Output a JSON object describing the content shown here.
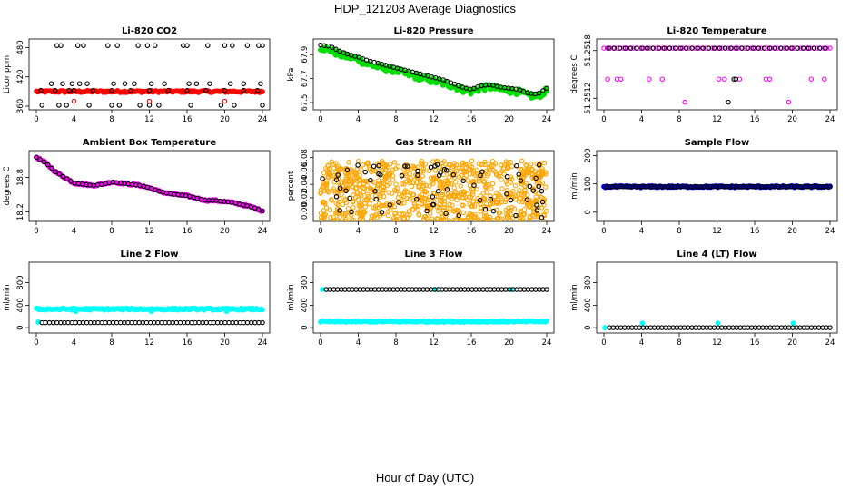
{
  "figure": {
    "title": "HDP_121208  Average Diagnostics",
    "xlabel": "Hour of Day (UTC)"
  },
  "chart_data": [
    {
      "id": "co2",
      "type": "scatter",
      "title": "Li-820 CO2",
      "ylabel": "Licor ppm",
      "xlim": [
        0,
        24
      ],
      "ylim": [
        360,
        490
      ],
      "xticks": [
        0,
        4,
        8,
        12,
        16,
        20,
        24
      ],
      "yticks": [
        360,
        420,
        480
      ],
      "series": [
        {
          "color": "#ff0000",
          "marker": "filled",
          "style": "band",
          "x_range": [
            0,
            24
          ],
          "y_center": 390,
          "y_spread": 2,
          "density": 160
        },
        {
          "color": "#000000",
          "marker": "open-circle",
          "x": [
            0.5,
            2,
            3.5,
            4,
            6,
            8,
            10,
            12,
            14,
            16,
            18,
            20,
            22,
            23.5
          ],
          "y": [
            392,
            392,
            392,
            392,
            392,
            392,
            392,
            392,
            392,
            392,
            392,
            392,
            392,
            392
          ]
        },
        {
          "color": "#000000",
          "marker": "open-circle",
          "x": [
            2.2,
            2.6,
            4.4,
            5.0,
            7.6,
            8.6,
            10.8,
            11.8,
            12.6,
            15.6,
            16.0,
            18.2,
            20.0,
            20.8,
            22.4,
            23.6,
            24.0
          ],
          "y": [
            484,
            484,
            484,
            484,
            484,
            484,
            484,
            484,
            484,
            484,
            484,
            484,
            484,
            484,
            484,
            484,
            484
          ]
        },
        {
          "color": "#000000",
          "marker": "open-circle",
          "x": [
            1.6,
            2.8,
            3.8,
            4.6,
            5.4,
            8.2,
            9.4,
            10.4,
            12.2,
            13.6,
            16.2,
            17.0,
            18.4,
            20.6,
            22.0,
            23.8
          ],
          "y": [
            406,
            406,
            406,
            406,
            406,
            406,
            406,
            406,
            406,
            406,
            406,
            406,
            406,
            406,
            406,
            406
          ]
        },
        {
          "color": "#000000",
          "marker": "open-circle",
          "x": [
            0.6,
            2.4,
            3.2,
            5.6,
            8.0,
            8.8,
            11.0,
            12.0,
            13.0,
            16.4,
            19.6,
            21.0,
            24.0
          ],
          "y": [
            362,
            362,
            362,
            362,
            362,
            362,
            362,
            362,
            362,
            362,
            362,
            362,
            362
          ]
        },
        {
          "color": "#ff0000",
          "marker": "open-circle",
          "x": [
            4.0,
            12.0,
            20.0
          ],
          "y": [
            370,
            370,
            370
          ]
        }
      ]
    },
    {
      "id": "pressure",
      "type": "scatter",
      "title": "Li-820 Pressure",
      "ylabel": "kPa",
      "xlim": [
        0,
        24
      ],
      "ylim": [
        67.47,
        68.0
      ],
      "xticks": [
        0,
        4,
        8,
        12,
        16,
        20,
        24
      ],
      "yticks": [
        67.5,
        67.7,
        67.9
      ],
      "series": [
        {
          "color": "#00dd00",
          "marker": "filled",
          "style": "band",
          "curve_x": [
            0,
            1,
            2,
            3,
            4,
            5,
            6,
            7,
            8,
            9,
            10,
            11,
            12,
            13,
            14,
            15,
            16,
            17,
            18,
            19,
            20,
            21,
            22,
            23,
            24
          ],
          "curve_y": [
            67.96,
            67.94,
            67.9,
            67.88,
            67.86,
            67.82,
            67.8,
            67.78,
            67.77,
            67.74,
            67.72,
            67.7,
            67.68,
            67.66,
            67.64,
            67.61,
            67.59,
            67.62,
            67.63,
            67.61,
            67.6,
            67.59,
            67.56,
            67.55,
            67.6
          ],
          "y_spread": 0.025,
          "density": 180
        },
        {
          "color": "#000000",
          "marker": "open-circle",
          "style": "line-samples",
          "curve_x": [
            0,
            1,
            2,
            3,
            4,
            5,
            6,
            7,
            8,
            9,
            10,
            11,
            12,
            13,
            14,
            15,
            16,
            17,
            18,
            19,
            20,
            21,
            22,
            23,
            24
          ],
          "curve_y": [
            67.98,
            67.97,
            67.93,
            67.9,
            67.88,
            67.85,
            67.83,
            67.81,
            67.79,
            67.77,
            67.75,
            67.73,
            67.71,
            67.69,
            67.66,
            67.63,
            67.61,
            67.64,
            67.65,
            67.63,
            67.62,
            67.61,
            67.58,
            67.57,
            67.62
          ],
          "count": 60
        }
      ]
    },
    {
      "id": "temp",
      "type": "scatter",
      "title": "Li-820 Temperature",
      "ylabel": "degrees C",
      "xlim": [
        0,
        24
      ],
      "ylim": [
        51.2511,
        51.2519
      ],
      "xticks": [
        0,
        4,
        8,
        12,
        16,
        20,
        24
      ],
      "yticks": [
        51.2512,
        51.2518
      ],
      "ytick_labels": [
        "51.2512",
        "51.2518"
      ],
      "series": [
        {
          "color": "#ff00ff",
          "marker": "open-circle",
          "style": "row",
          "x_range": [
            0,
            24
          ],
          "y": 51.25183,
          "count": 70
        },
        {
          "color": "#000000",
          "marker": "open-circle",
          "style": "row",
          "x_range": [
            0.5,
            23.5
          ],
          "y": 51.25183,
          "count": 40
        },
        {
          "color": "#ff00ff",
          "marker": "open-circle",
          "x": [
            0.4,
            1.4,
            1.8,
            4.8,
            6.2,
            12.2,
            12.8,
            14.4,
            17.2,
            17.6,
            22.0,
            23.4
          ],
          "y": [
            51.25144,
            51.25144,
            51.25144,
            51.25144,
            51.25144,
            51.25144,
            51.25144,
            51.25144,
            51.25144,
            51.25144,
            51.25144,
            51.25144
          ]
        },
        {
          "color": "#000000",
          "marker": "open-circle",
          "x": [
            13.8,
            14.0
          ],
          "y": [
            51.25144,
            51.25144
          ]
        },
        {
          "color": "#ff00ff",
          "marker": "open-circle",
          "x": [
            8.6,
            19.6
          ],
          "y": [
            51.25115,
            51.25115
          ]
        },
        {
          "color": "#000000",
          "marker": "open-circle",
          "x": [
            13.2
          ],
          "y": [
            51.25115
          ]
        }
      ]
    },
    {
      "id": "boxtemp",
      "type": "scatter",
      "title": "Ambient Box Temperature",
      "ylabel": "degrees C",
      "xlim": [
        0,
        24
      ],
      "ylim": [
        18.1,
        19.2
      ],
      "xticks": [
        0,
        4,
        8,
        12,
        16,
        20,
        24
      ],
      "yticks": [
        18.2,
        18.8
      ],
      "series": [
        {
          "color": "#ff00ff",
          "marker": "filled",
          "style": "band",
          "curve_x": [
            0,
            1,
            2,
            3,
            4,
            5,
            6,
            7,
            8,
            9,
            10,
            11,
            12,
            13,
            14,
            15,
            16,
            17,
            18,
            19,
            20,
            21,
            22,
            23,
            24
          ],
          "curve_y": [
            19.15,
            19.05,
            18.9,
            18.8,
            18.7,
            18.68,
            18.66,
            18.68,
            18.72,
            18.7,
            18.68,
            18.66,
            18.62,
            18.56,
            18.52,
            18.5,
            18.48,
            18.44,
            18.4,
            18.4,
            18.38,
            18.36,
            18.32,
            18.28,
            18.22
          ],
          "y_spread": 0.015,
          "density": 150
        },
        {
          "color": "#000000",
          "marker": "open-circle",
          "style": "line-samples",
          "curve_x": [
            0,
            1,
            2,
            3,
            4,
            5,
            6,
            7,
            8,
            9,
            10,
            11,
            12,
            13,
            14,
            15,
            16,
            17,
            18,
            19,
            20,
            21,
            22,
            23,
            24
          ],
          "curve_y": [
            19.15,
            19.05,
            18.9,
            18.8,
            18.7,
            18.68,
            18.66,
            18.68,
            18.72,
            18.7,
            18.68,
            18.66,
            18.62,
            18.56,
            18.52,
            18.5,
            18.48,
            18.44,
            18.4,
            18.4,
            18.38,
            18.36,
            18.32,
            18.28,
            18.22
          ],
          "count": 60
        }
      ]
    },
    {
      "id": "rh",
      "type": "scatter",
      "title": "Gas Stream RH",
      "ylabel": "percent",
      "xlim": [
        0,
        24
      ],
      "ylim": [
        -0.01,
        0.085
      ],
      "xticks": [
        0,
        4,
        8,
        12,
        16,
        20,
        24
      ],
      "yticks": [
        0.0,
        0.02,
        0.04,
        0.06,
        0.08
      ],
      "ytick_labels": [
        "0.00",
        "0.02",
        "0.04",
        "0.06",
        "0.08"
      ],
      "series": [
        {
          "color": "#ffa500",
          "marker": "open-circle",
          "style": "cloud",
          "x_range": [
            0,
            24
          ],
          "y_center": 0.03,
          "y_spread": 0.045,
          "density": 900
        },
        {
          "color": "#000000",
          "marker": "open-circle",
          "style": "cloud",
          "x_range": [
            0,
            24
          ],
          "y_center": 0.03,
          "y_spread": 0.04,
          "density": 70
        }
      ]
    },
    {
      "id": "sampleflow",
      "type": "scatter",
      "title": "Sample Flow",
      "ylabel": "ml/min",
      "xlim": [
        0,
        24
      ],
      "ylim": [
        -20,
        205
      ],
      "xticks": [
        0,
        4,
        8,
        12,
        16,
        20,
        24
      ],
      "yticks": [
        0,
        100,
        200
      ],
      "series": [
        {
          "color": "#0000cc",
          "marker": "filled",
          "style": "band",
          "x_range": [
            0,
            24
          ],
          "y_center": 90,
          "y_spread": 3,
          "density": 160
        },
        {
          "color": "#000000",
          "marker": "open-circle",
          "style": "row",
          "x_range": [
            0.3,
            24
          ],
          "y": 90,
          "count": 70
        }
      ]
    },
    {
      "id": "line2",
      "type": "scatter",
      "title": "Line 2 Flow",
      "ylabel": "ml/min",
      "xlim": [
        0,
        24
      ],
      "ylim": [
        -30,
        1100
      ],
      "xticks": [
        0,
        4,
        8,
        12,
        16,
        20,
        24
      ],
      "yticks": [
        0,
        400,
        800
      ],
      "series": [
        {
          "color": "#00ffff",
          "marker": "filled",
          "style": "band",
          "x_range": [
            0,
            24
          ],
          "y_center": 330,
          "y_spread": 15,
          "density": 160
        },
        {
          "color": "#00ffff",
          "marker": "filled",
          "x": [
            0.2,
            4.2,
            12.2,
            20.2
          ],
          "y": [
            100,
            290,
            290,
            290
          ]
        },
        {
          "color": "#000000",
          "marker": "open-circle",
          "style": "row",
          "x_range": [
            0.6,
            24
          ],
          "y": 90,
          "count": 60
        }
      ]
    },
    {
      "id": "line3",
      "type": "scatter",
      "title": "Line 3 Flow",
      "ylabel": "ml/min",
      "xlim": [
        0,
        24
      ],
      "ylim": [
        -30,
        1100
      ],
      "xticks": [
        0,
        4,
        8,
        12,
        16,
        20,
        24
      ],
      "yticks": [
        0,
        400,
        800
      ],
      "series": [
        {
          "color": "#00ffff",
          "marker": "filled",
          "style": "band",
          "x_range": [
            0,
            24
          ],
          "y_center": 110,
          "y_spread": 12,
          "density": 160
        },
        {
          "color": "#00ffff",
          "marker": "filled",
          "x": [
            0.2,
            12.2,
            20.2
          ],
          "y": [
            680,
            680,
            680
          ]
        },
        {
          "color": "#000000",
          "marker": "open-circle",
          "style": "row",
          "x_range": [
            0.6,
            24
          ],
          "y": 680,
          "count": 60
        }
      ]
    },
    {
      "id": "line4",
      "type": "scatter",
      "title": "Line 4 (LT) Flow",
      "ylabel": "ml/min",
      "xlim": [
        0,
        24
      ],
      "ylim": [
        -30,
        1100
      ],
      "xticks": [
        0,
        4,
        8,
        12,
        16,
        20,
        24
      ],
      "yticks": [
        0,
        400,
        800
      ],
      "series": [
        {
          "color": "#00ffff",
          "marker": "filled",
          "x": [
            0.1,
            4.1,
            12.1,
            20.1
          ],
          "y": [
            0,
            80,
            80,
            80
          ]
        },
        {
          "color": "#000000",
          "marker": "open-circle",
          "style": "row",
          "x_range": [
            0.6,
            24
          ],
          "y": 0,
          "count": 60
        }
      ]
    }
  ]
}
